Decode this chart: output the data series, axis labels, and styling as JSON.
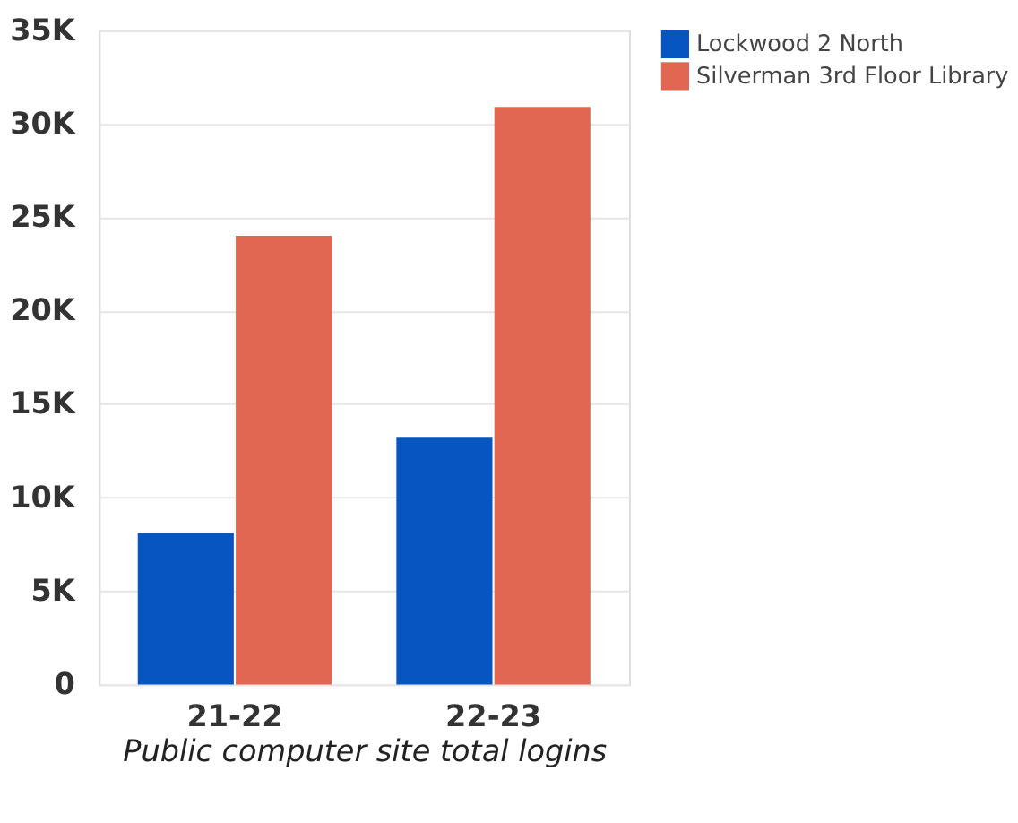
{
  "chart_data": {
    "type": "bar",
    "xlabel": "Public computer site total logins",
    "categories": [
      "21-22",
      "22-23"
    ],
    "series": [
      {
        "name": "Lockwood 2 North",
        "color": "#0655c0",
        "values": [
          8100,
          13200
        ]
      },
      {
        "name": "Silverman 3rd Floor Library",
        "color": "#e26752",
        "values": [
          24000,
          30900
        ]
      }
    ],
    "ylim": [
      0,
      35000
    ],
    "yticks": [
      0,
      {
        "value": 5000,
        "label": "5K"
      },
      {
        "value": 10000,
        "label": "10K"
      },
      {
        "value": 15000,
        "label": "15K"
      },
      {
        "value": 20000,
        "label": "20K"
      },
      {
        "value": 25000,
        "label": "25K"
      },
      {
        "value": 30000,
        "label": "30K"
      },
      {
        "value": 35000,
        "label": "35K"
      }
    ],
    "grid": "y",
    "legend": "top right"
  }
}
